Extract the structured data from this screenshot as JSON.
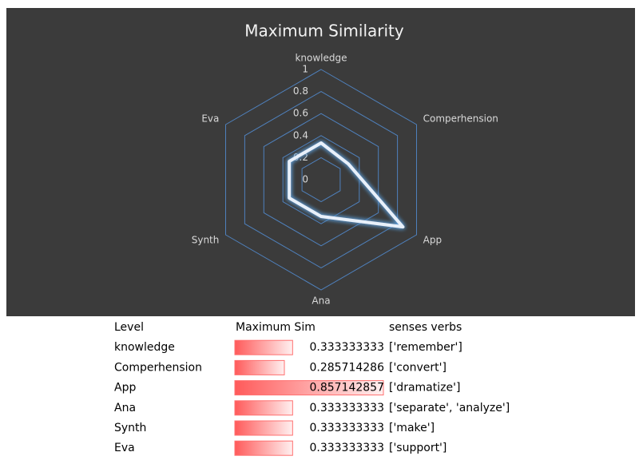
{
  "chart_data": {
    "type": "radar",
    "title": "Maximum Similarity",
    "categories": [
      "knowledge",
      "Comperhension",
      "App",
      "Ana",
      "Synth",
      "Eva"
    ],
    "values": [
      0.333333333,
      0.285714286,
      0.857142857,
      0.333333333,
      0.333333333,
      0.333333333
    ],
    "color": "#e8f0fa",
    "grid_color": "#4f81bd",
    "rlim": [
      0,
      1
    ],
    "rticks": [
      0,
      0.2,
      0.4,
      0.6,
      0.8,
      1
    ]
  },
  "table": {
    "headers": [
      "Level",
      "Maximum Sim",
      "senses verbs"
    ],
    "verbs": [
      "['remember']",
      "['convert']",
      "['dramatize']",
      "['separate', 'analyze']",
      "['make']",
      "['support']"
    ]
  }
}
